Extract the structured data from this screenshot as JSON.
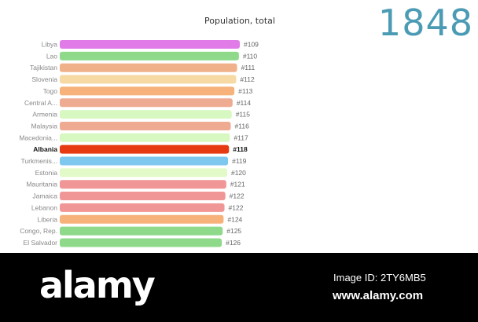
{
  "chart_data": {
    "type": "bar",
    "title": "Population, total",
    "year": "1848",
    "highlight": "Albania",
    "bars": [
      {
        "country": "Libya",
        "rank": "#109",
        "value": 100,
        "color": "#e07be8"
      },
      {
        "country": "Lao",
        "rank": "#110",
        "value": 99.5,
        "color": "#8ed98a"
      },
      {
        "country": "Tajikistan",
        "rank": "#111",
        "value": 98.5,
        "color": "#f0b08a"
      },
      {
        "country": "Slovenia",
        "rank": "#112",
        "value": 98.0,
        "color": "#f7d9a4"
      },
      {
        "country": "Togo",
        "rank": "#113",
        "value": 97.0,
        "color": "#f6b27a"
      },
      {
        "country": "Central A...",
        "rank": "#114",
        "value": 96.0,
        "color": "#efab92"
      },
      {
        "country": "Armenia",
        "rank": "#115",
        "value": 95.5,
        "color": "#d8f8c2"
      },
      {
        "country": "Malaysia",
        "rank": "#116",
        "value": 95.0,
        "color": "#efab92"
      },
      {
        "country": "Macedonia...",
        "rank": "#117",
        "value": 94.5,
        "color": "#d8f8c2"
      },
      {
        "country": "Albania",
        "rank": "#118",
        "value": 94.0,
        "color": "#e63a12"
      },
      {
        "country": "Turkmenis...",
        "rank": "#119",
        "value": 93.5,
        "color": "#7ec8f0"
      },
      {
        "country": "Estonia",
        "rank": "#120",
        "value": 93.0,
        "color": "#e2f9c8"
      },
      {
        "country": "Mauritania",
        "rank": "#121",
        "value": 92.5,
        "color": "#f09696"
      },
      {
        "country": "Jamaica",
        "rank": "#122",
        "value": 92.0,
        "color": "#f09696"
      },
      {
        "country": "Lebanon",
        "rank": "#122",
        "value": 91.5,
        "color": "#f09696"
      },
      {
        "country": "Liberia",
        "rank": "#124",
        "value": 91.0,
        "color": "#f6b27a"
      },
      {
        "country": "Congo, Rep.",
        "rank": "#125",
        "value": 90.5,
        "color": "#8ed98a"
      },
      {
        "country": "El Salvador",
        "rank": "#126",
        "value": 90.0,
        "color": "#8ed98a"
      }
    ]
  },
  "footer": {
    "logo": "alamy",
    "image_id": "Image ID: 2TY6MB5",
    "url": "www.alamy.com"
  }
}
